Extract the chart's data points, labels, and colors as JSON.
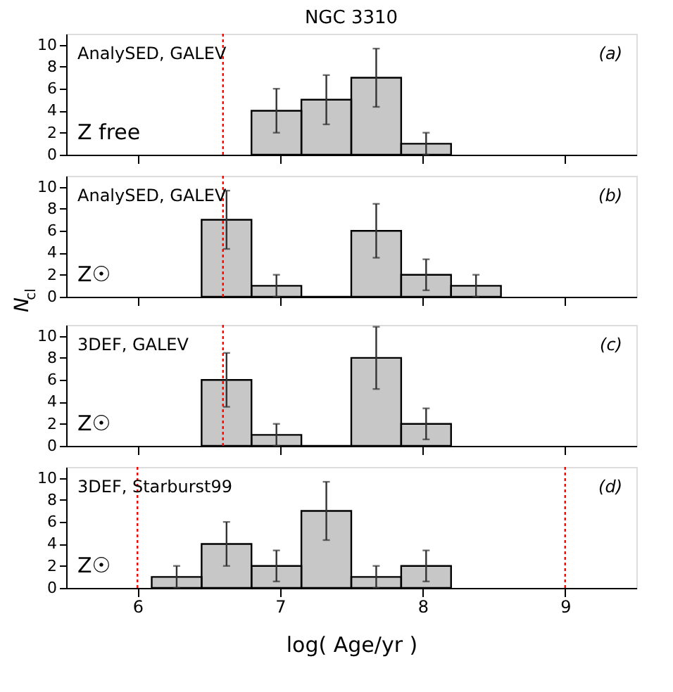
{
  "chart_data": [
    {
      "type": "histogram",
      "title": "NGC 3310",
      "bins": [
        6.8,
        7.15,
        7.5,
        7.85,
        8.2
      ],
      "values": [
        4,
        5,
        7,
        1
      ],
      "errors": [
        2,
        2.24,
        2.65,
        1
      ],
      "color": "#000000",
      "xlim": [
        5.5,
        9.5
      ],
      "xticks": [
        6,
        7,
        8,
        9
      ],
      "ylim": [
        0,
        11
      ],
      "yticks": [
        0,
        2,
        4,
        6,
        8,
        10
      ],
      "tick_labels": "y",
      "grid": false,
      "annotations": [
        "AnalySED, GALEV",
        "(a)",
        "Z free"
      ],
      "ref_lines": [
        {
          "axis": "x",
          "value": 6.6,
          "color": "#ff0000",
          "line_style": "dotted"
        }
      ]
    },
    {
      "type": "histogram",
      "ylabel": "N$_{cl}$",
      "bins": [
        6.45,
        6.8,
        7.15,
        7.5,
        7.85,
        8.2,
        8.55
      ],
      "values": [
        7,
        1,
        0,
        6,
        2,
        1
      ],
      "errors": [
        2.65,
        1,
        null,
        2.45,
        1.41,
        1
      ],
      "color": "#000000",
      "xlim": [
        5.5,
        9.5
      ],
      "xticks": [
        6,
        7,
        8,
        9
      ],
      "ylim": [
        0,
        11
      ],
      "yticks": [
        0,
        2,
        4,
        6,
        8,
        10
      ],
      "tick_labels": "y",
      "grid": false,
      "annotations": [
        "AnalySED, GALEV",
        "(b)",
        "Z☉"
      ],
      "ref_lines": [
        {
          "axis": "x",
          "value": 6.6,
          "color": "#ff0000",
          "line_style": "dotted"
        }
      ]
    },
    {
      "type": "histogram",
      "bins": [
        6.45,
        6.8,
        7.15,
        7.5,
        7.85,
        8.2
      ],
      "values": [
        6,
        1,
        0,
        8,
        2
      ],
      "errors": [
        2.45,
        1,
        null,
        2.83,
        1.41
      ],
      "color": "#000000",
      "xlim": [
        5.5,
        9.5
      ],
      "xticks": [
        6,
        7,
        8,
        9
      ],
      "ylim": [
        0,
        11
      ],
      "yticks": [
        0,
        2,
        4,
        6,
        8,
        10
      ],
      "tick_labels": "y",
      "grid": false,
      "annotations": [
        "3DEF, GALEV",
        "(c)",
        "Z☉"
      ],
      "ref_lines": [
        {
          "axis": "x",
          "value": 6.6,
          "color": "#ff0000",
          "line_style": "dotted"
        }
      ]
    },
    {
      "type": "histogram",
      "xlabel": "log( Age/yr )",
      "bins": [
        6.1,
        6.45,
        6.8,
        7.15,
        7.5,
        7.85,
        8.2
      ],
      "values": [
        1,
        4,
        2,
        7,
        1,
        2
      ],
      "errors": [
        1,
        2,
        1.41,
        2.65,
        1,
        1.41
      ],
      "color": "#000000",
      "xlim": [
        5.5,
        9.5
      ],
      "xticks": [
        6,
        7,
        8,
        9
      ],
      "ylim": [
        0,
        11
      ],
      "yticks": [
        0,
        2,
        4,
        6,
        8,
        10
      ],
      "grid": false,
      "annotations": [
        "3DEF, Starburst99",
        "(d)",
        "Z☉"
      ],
      "ref_lines": [
        {
          "axis": "x",
          "value": 6,
          "color": "#ff0000",
          "line_style": "dotted"
        },
        {
          "axis": "x",
          "value": 9,
          "color": "#ff0000",
          "line_style": "dotted"
        }
      ]
    }
  ]
}
